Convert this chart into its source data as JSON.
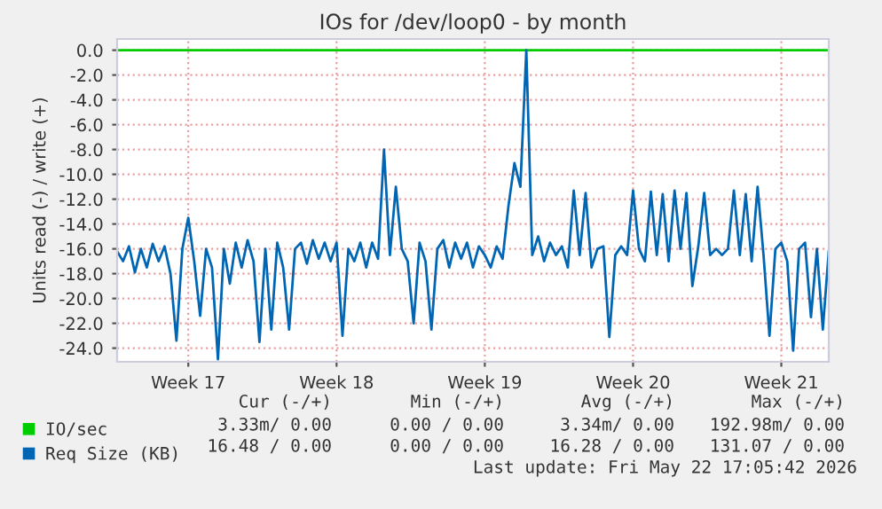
{
  "chart_data": {
    "type": "line",
    "title": "IOs for /dev/loop0 - by month",
    "ylabel": "Units read (-) / write (+)",
    "categories": [
      null,
      null,
      null,
      null,
      null,
      null,
      null,
      null,
      null,
      null,
      null,
      null,
      "Week 17",
      null,
      null,
      null,
      null,
      null,
      null,
      null,
      null,
      null,
      null,
      null,
      null,
      null,
      null,
      null,
      null,
      null,
      null,
      null,
      null,
      null,
      null,
      null,
      null,
      "Week 18",
      null,
      null,
      null,
      null,
      null,
      null,
      null,
      null,
      null,
      null,
      null,
      null,
      null,
      null,
      null,
      null,
      null,
      null,
      null,
      null,
      null,
      null,
      null,
      null,
      "Week 19",
      null,
      null,
      null,
      null,
      null,
      null,
      null,
      null,
      null,
      null,
      null,
      null,
      null,
      null,
      null,
      null,
      null,
      null,
      null,
      null,
      null,
      null,
      null,
      null,
      "Week 20",
      null,
      null,
      null,
      null,
      null,
      null,
      null,
      null,
      null,
      null,
      null,
      null,
      null,
      null,
      null,
      null,
      null,
      null,
      null,
      null,
      null,
      null,
      null,
      null,
      "Week 21",
      null,
      null,
      null,
      null,
      null,
      null,
      null,
      null
    ],
    "ylim": [
      -25.1,
      0.9
    ],
    "yticks": [
      {
        "value": 0,
        "label": "0.0"
      },
      {
        "value": -2,
        "label": "-2.0"
      },
      {
        "value": -4,
        "label": "-4.0"
      },
      {
        "value": -6,
        "label": "-6.0"
      },
      {
        "value": -8,
        "label": "-8.0"
      },
      {
        "value": -10,
        "label": "-10.0"
      },
      {
        "value": -12,
        "label": "-12.0"
      },
      {
        "value": -14,
        "label": "-14.0"
      },
      {
        "value": -16,
        "label": "-16.0"
      },
      {
        "value": -18,
        "label": "-18.0"
      },
      {
        "value": -20,
        "label": "-20.0"
      },
      {
        "value": -22,
        "label": "-22.0"
      },
      {
        "value": -24,
        "label": "-24.0"
      }
    ],
    "grid": true,
    "legend": "bottom left",
    "line_style": "solid",
    "series": [
      {
        "name": "IO/sec",
        "color": "#00cc00",
        "values": [
          0,
          0,
          0,
          0,
          0,
          0,
          0,
          0,
          0,
          0,
          0,
          0,
          0,
          0,
          0,
          0,
          0,
          0,
          0,
          0,
          0,
          0,
          0,
          0,
          0,
          0,
          0,
          0,
          0,
          0,
          0,
          0,
          0,
          0,
          0,
          0,
          0,
          0,
          0,
          0,
          0,
          0,
          0,
          0,
          0,
          0,
          0,
          0,
          0,
          0,
          0,
          0,
          0,
          0,
          0,
          0,
          0,
          0,
          0,
          0,
          0,
          0,
          0,
          0,
          0,
          0,
          0,
          0,
          0,
          0,
          0,
          0,
          0,
          0,
          0,
          0,
          0,
          0,
          0,
          0,
          0,
          0,
          0,
          0,
          0,
          0,
          0,
          0,
          0,
          0,
          0,
          0,
          0,
          0,
          0,
          0,
          0,
          0,
          0,
          0,
          0,
          0,
          0,
          0,
          0,
          0,
          0,
          0,
          0,
          0,
          0,
          0,
          0,
          0,
          0,
          0,
          0,
          0,
          0,
          0,
          0
        ]
      },
      {
        "name": "Req Size (KB)",
        "color": "#0066b3",
        "values": [
          -16.2,
          -17.0,
          -15.8,
          -17.9,
          -16.0,
          -17.5,
          -15.6,
          -17.0,
          -15.8,
          -18.0,
          -23.4,
          -16.0,
          -13.5,
          -17.0,
          -21.4,
          -16.0,
          -17.5,
          -24.9,
          -16.0,
          -18.8,
          -15.5,
          -17.5,
          -15.3,
          -17.0,
          -23.5,
          -16.0,
          -22.5,
          -15.5,
          -17.5,
          -22.5,
          -16.0,
          -15.5,
          -17.2,
          -15.3,
          -16.8,
          -15.5,
          -17.0,
          -15.5,
          -23.0,
          -16.0,
          -17.0,
          -15.5,
          -17.5,
          -15.5,
          -16.8,
          -8.0,
          -16.5,
          -11.0,
          -16.0,
          -17.0,
          -22.0,
          -15.5,
          -17.0,
          -22.5,
          -16.0,
          -15.3,
          -17.5,
          -15.5,
          -16.8,
          -15.5,
          -17.5,
          -15.8,
          -16.5,
          -17.5,
          -15.8,
          -16.8,
          -12.5,
          -9.1,
          -11.0,
          0.0,
          -16.5,
          -15.0,
          -17.0,
          -15.5,
          -16.5,
          -15.8,
          -17.5,
          -11.3,
          -16.5,
          -11.5,
          -17.5,
          -16.0,
          -15.8,
          -23.1,
          -16.5,
          -15.8,
          -16.5,
          -11.3,
          -16.0,
          -17.0,
          -11.4,
          -16.5,
          -11.6,
          -17.0,
          -11.3,
          -16.0,
          -11.5,
          -19.0,
          -15.8,
          -11.5,
          -16.5,
          -16.0,
          -16.5,
          -16.0,
          -11.3,
          -16.5,
          -11.6,
          -17.0,
          -11.0,
          -16.5,
          -23.0,
          -16.0,
          -15.5,
          -17.0,
          -24.2,
          -16.0,
          -15.5,
          -21.5,
          -16.0,
          -22.5,
          -16.2
        ]
      }
    ],
    "annotations": [
      "Cur (-/+)",
      "Min (-/+)",
      "Avg (-/+)",
      "Max (-/+)",
      "3.33m/ 0.00",
      "0.00 / 0.00",
      "3.34m/ 0.00",
      "192.98m/ 0.00",
      "16.48 / 0.00",
      "0.00 / 0.00",
      "16.28 / 0.00",
      "131.07 / 0.00",
      "Last update: Fri May 22 17:05:42 2026"
    ]
  }
}
